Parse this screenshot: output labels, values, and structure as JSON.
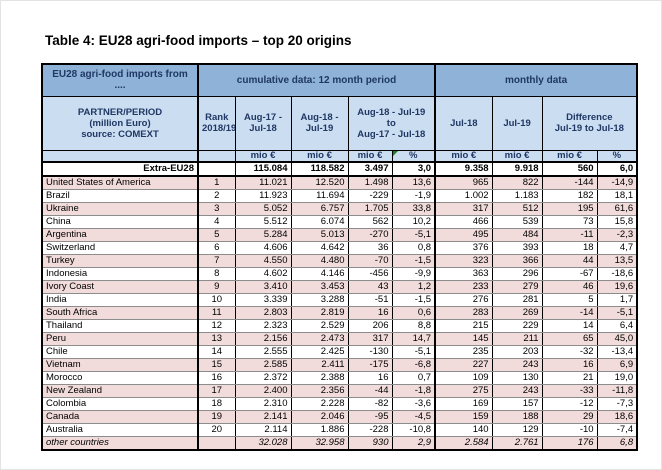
{
  "page": {
    "title": "Table 4: EU28 agri-food imports – top 20 origins"
  },
  "colors": {
    "group_header_blue": "#8FB2D8",
    "sub_header_blue": "#CBDDF1",
    "header_text_navy": "#1F3864",
    "alt_row_pink": "#F2DCDB",
    "corner_marker_green": "#1E7B2E"
  },
  "table": {
    "group_headers": {
      "partner": "EU28 agri-food imports from ....",
      "cumulative": "cumulative data: 12 month period",
      "monthly": "monthly data"
    },
    "column_headers": {
      "partner": "PARTNER/PERIOD\n(million Euro)\nsource: COMEXT",
      "rank": "Rank\n2018/19",
      "cum_prev": "Aug-17 -\nJul-18",
      "cum_curr": "Aug-18 -\nJul-19",
      "cum_diff": "Aug-18 - Jul-19 to\nAug-17 - Jul-18",
      "month_prev": "Jul-18",
      "month_curr": "Jul-19",
      "month_diff": "Difference\nJul-19 to Jul-18"
    },
    "units_row": [
      "",
      "",
      "mio €",
      "mio €",
      "mio €",
      "%",
      "mio €",
      "mio €",
      "mio €",
      "%"
    ],
    "extra_row": {
      "label": "Extra-EU28",
      "values": [
        "115.084",
        "118.582",
        "3.497",
        "3,0",
        "9.358",
        "9.918",
        "560",
        "6,0"
      ]
    },
    "rows": [
      {
        "label": "United States of America",
        "rank": "1",
        "values": [
          "11.021",
          "12.520",
          "1.498",
          "13,6",
          "965",
          "822",
          "-144",
          "-14,9"
        ]
      },
      {
        "label": "Brazil",
        "rank": "2",
        "values": [
          "11.923",
          "11.694",
          "-229",
          "-1,9",
          "1.002",
          "1.183",
          "182",
          "18,1"
        ]
      },
      {
        "label": "Ukraine",
        "rank": "3",
        "values": [
          "5.052",
          "6.757",
          "1.705",
          "33,8",
          "317",
          "512",
          "195",
          "61,6"
        ]
      },
      {
        "label": "China",
        "rank": "4",
        "values": [
          "5.512",
          "6.074",
          "562",
          "10,2",
          "466",
          "539",
          "73",
          "15,8"
        ]
      },
      {
        "label": "Argentina",
        "rank": "5",
        "values": [
          "5.284",
          "5.013",
          "-270",
          "-5,1",
          "495",
          "484",
          "-11",
          "-2,3"
        ]
      },
      {
        "label": "Switzerland",
        "rank": "6",
        "values": [
          "4.606",
          "4.642",
          "36",
          "0,8",
          "376",
          "393",
          "18",
          "4,7"
        ]
      },
      {
        "label": "Turkey",
        "rank": "7",
        "values": [
          "4.550",
          "4.480",
          "-70",
          "-1,5",
          "323",
          "366",
          "44",
          "13,5"
        ]
      },
      {
        "label": "Indonesia",
        "rank": "8",
        "values": [
          "4.602",
          "4.146",
          "-456",
          "-9,9",
          "363",
          "296",
          "-67",
          "-18,6"
        ]
      },
      {
        "label": "Ivory Coast",
        "rank": "9",
        "values": [
          "3.410",
          "3.453",
          "43",
          "1,2",
          "233",
          "279",
          "46",
          "19,6"
        ]
      },
      {
        "label": "India",
        "rank": "10",
        "values": [
          "3.339",
          "3.288",
          "-51",
          "-1,5",
          "276",
          "281",
          "5",
          "1,7"
        ]
      },
      {
        "label": "South Africa",
        "rank": "11",
        "values": [
          "2.803",
          "2.819",
          "16",
          "0,6",
          "283",
          "269",
          "-14",
          "-5,1"
        ]
      },
      {
        "label": "Thailand",
        "rank": "12",
        "values": [
          "2.323",
          "2.529",
          "206",
          "8,8",
          "215",
          "229",
          "14",
          "6,4"
        ]
      },
      {
        "label": "Peru",
        "rank": "13",
        "values": [
          "2.156",
          "2.473",
          "317",
          "14,7",
          "145",
          "211",
          "65",
          "45,0"
        ]
      },
      {
        "label": "Chile",
        "rank": "14",
        "values": [
          "2.555",
          "2.425",
          "-130",
          "-5,1",
          "235",
          "203",
          "-32",
          "-13,4"
        ]
      },
      {
        "label": "Vietnam",
        "rank": "15",
        "values": [
          "2.585",
          "2.411",
          "-175",
          "-6,8",
          "227",
          "243",
          "16",
          "6,9"
        ]
      },
      {
        "label": "Morocco",
        "rank": "16",
        "values": [
          "2.372",
          "2.388",
          "16",
          "0,7",
          "109",
          "130",
          "21",
          "19,0"
        ]
      },
      {
        "label": "New Zealand",
        "rank": "17",
        "values": [
          "2.400",
          "2.356",
          "-44",
          "-1,8",
          "275",
          "243",
          "-33",
          "-11,8"
        ]
      },
      {
        "label": "Colombia",
        "rank": "18",
        "values": [
          "2.310",
          "2.228",
          "-82",
          "-3,6",
          "169",
          "157",
          "-12",
          "-7,3"
        ]
      },
      {
        "label": "Canada",
        "rank": "19",
        "values": [
          "2.141",
          "2.046",
          "-95",
          "-4,5",
          "159",
          "188",
          "29",
          "18,6"
        ]
      },
      {
        "label": "Australia",
        "rank": "20",
        "values": [
          "2.114",
          "1.886",
          "-228",
          "-10,8",
          "140",
          "129",
          "-10",
          "-7,4"
        ]
      },
      {
        "label": "other countries",
        "rank": "",
        "italic": true,
        "values": [
          "32.028",
          "32.958",
          "930",
          "2,9",
          "2.584",
          "2.761",
          "176",
          "6,8"
        ]
      }
    ]
  }
}
